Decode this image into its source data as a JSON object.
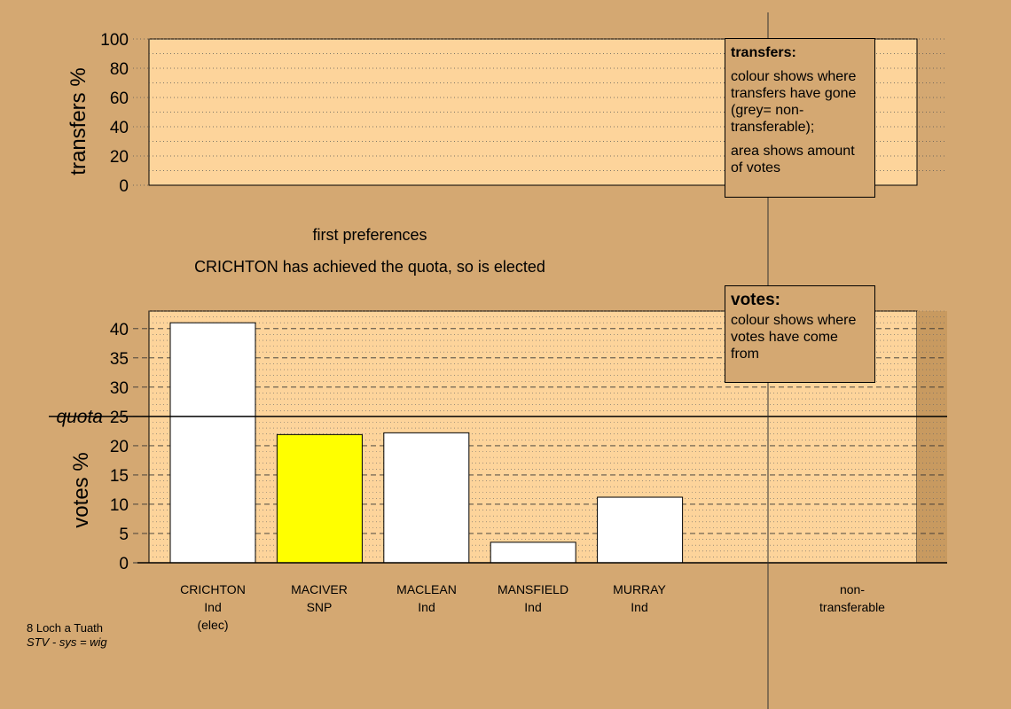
{
  "chart_data": [
    {
      "type": "area",
      "ylabel": "transfers %",
      "ylim": [
        0,
        100
      ],
      "yticks": [
        0,
        20,
        40,
        60,
        80,
        100
      ],
      "grid": true,
      "series": []
    },
    {
      "type": "bar",
      "ylabel": "votes %",
      "ylim": [
        0,
        43
      ],
      "yticks": [
        0,
        5,
        10,
        15,
        20,
        25,
        30,
        35,
        40
      ],
      "quota": {
        "label": "quota",
        "value": 25
      },
      "grid": true,
      "categories": [
        {
          "name": "CRICHTON",
          "party": "Ind",
          "status": "(elec)"
        },
        {
          "name": "MACIVER",
          "party": "SNP",
          "status": ""
        },
        {
          "name": "MACLEAN",
          "party": "Ind",
          "status": ""
        },
        {
          "name": "MANSFIELD",
          "party": "Ind",
          "status": ""
        },
        {
          "name": "MURRAY",
          "party": "Ind",
          "status": ""
        }
      ],
      "values": [
        41.0,
        21.9,
        22.2,
        3.5,
        11.2
      ],
      "colors": [
        "#ffffff",
        "#ffff00",
        "#ffffff",
        "#ffffff",
        "#ffffff"
      ],
      "non_transferable_label_1": "non-",
      "non_transferable_label_2": "transferable"
    }
  ],
  "stage_label": "first preferences",
  "status_message": "CRICHTON has achieved the quota, so is elected",
  "legend_transfers": {
    "title": "transfers:",
    "line1": "colour shows where transfers have gone (grey= non-transferable);",
    "line2": "area shows amount of votes"
  },
  "legend_votes": {
    "title": "votes:",
    "line1": "colour shows where votes have come from"
  },
  "footer": {
    "ward": "8 Loch a Tuath",
    "system": "STV - sys = wig"
  },
  "colors": {
    "background": "#d4a872",
    "plot_area": "#fdd49b",
    "elected": "#ffffff",
    "snp": "#ffff00"
  }
}
